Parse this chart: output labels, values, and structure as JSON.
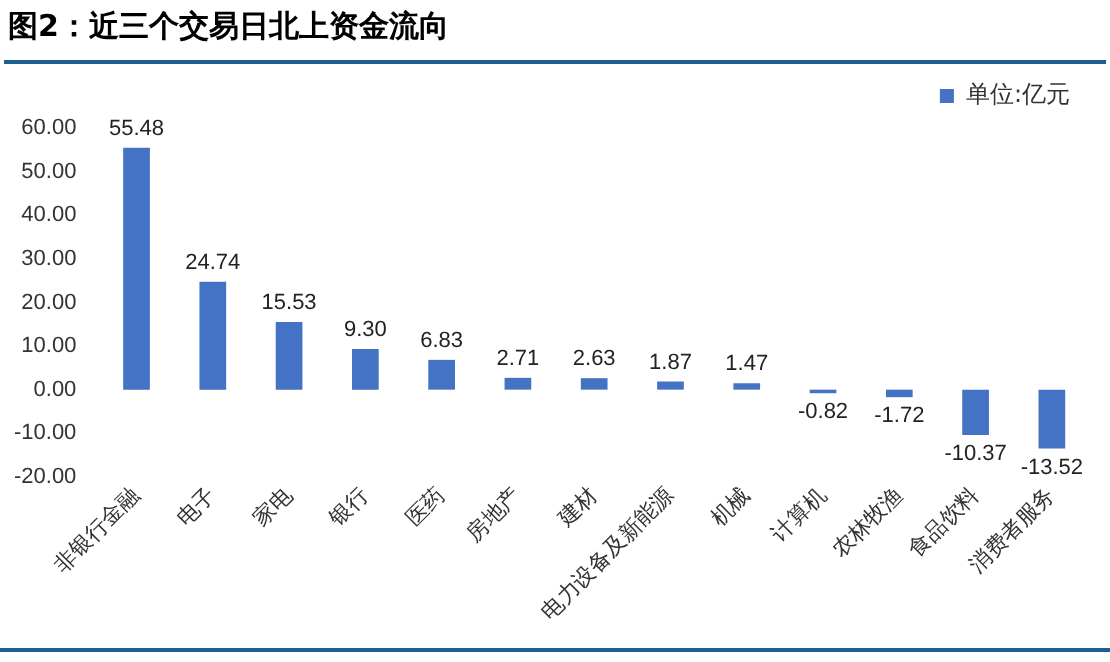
{
  "chart_data": {
    "type": "bar",
    "title": "图2：近三个交易日北上资金流向",
    "categories": [
      "非银行金融",
      "电子",
      "家电",
      "银行",
      "医药",
      "房地产",
      "建材",
      "电力设备及新能源",
      "机械",
      "计算机",
      "农林牧渔",
      "食品饮料",
      "消费者服务"
    ],
    "series": [
      {
        "name": "单位:亿元",
        "color": "#4472c4",
        "values": [
          55.48,
          24.74,
          15.53,
          9.3,
          6.83,
          2.71,
          2.63,
          1.87,
          1.47,
          -0.82,
          -1.72,
          -10.37,
          -13.52
        ],
        "value_labels": [
          "55.48",
          "24.74",
          "15.53",
          "9.30",
          "6.83",
          "2.71",
          "2.63",
          "1.87",
          "1.47",
          "-0.82",
          "-1.72",
          "-10.37",
          "-13.52"
        ]
      }
    ],
    "ylim": [
      -20,
      60
    ],
    "yticks": [
      {
        "value": -20,
        "label": "-20.00"
      },
      {
        "value": -10,
        "label": "-10.00"
      },
      {
        "value": 0,
        "label": "0.00"
      },
      {
        "value": 10,
        "label": "10.00"
      },
      {
        "value": 20,
        "label": "20.00"
      },
      {
        "value": 30,
        "label": "30.00"
      },
      {
        "value": 40,
        "label": "40.00"
      },
      {
        "value": 50,
        "label": "50.00"
      },
      {
        "value": 60,
        "label": "60.00"
      }
    ],
    "legend": "top",
    "grid": false
  }
}
